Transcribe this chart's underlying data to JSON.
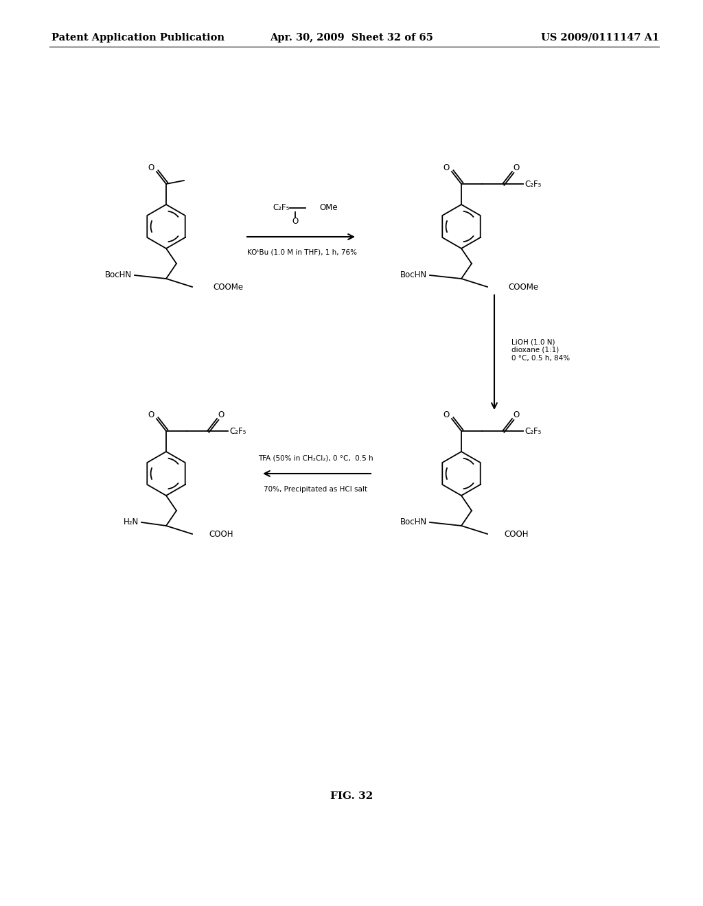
{
  "header_left": "Patent Application Publication",
  "header_mid": "Apr. 30, 2009  Sheet 32 of 65",
  "header_right": "US 2009/0111147 A1",
  "fig_label": "FIG. 32",
  "bg_color": "#ffffff",
  "text_color": "#000000",
  "lw": 1.3,
  "fs": 8.5,
  "fs_arrow": 7.5,
  "fs_header": 10.5,
  "fs_fig": 11.0
}
